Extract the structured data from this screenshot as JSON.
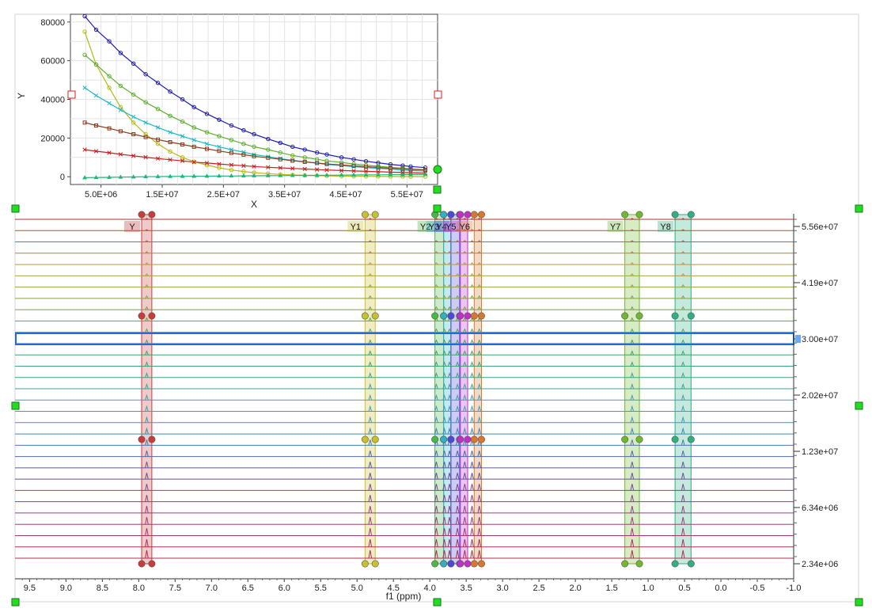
{
  "chart_data": [
    {
      "type": "scatter",
      "title": "",
      "xlabel": "X",
      "ylabel": "Y",
      "xlim": [
        0,
        60000000
      ],
      "ylim": [
        -4000,
        84000
      ],
      "x_ticks": [
        5000000,
        15000000,
        25000000,
        35000000,
        45000000,
        55000000
      ],
      "x_tick_labels": [
        "5.0E+06",
        "1.5E+07",
        "2.5E+07",
        "3.5E+07",
        "4.5E+07",
        "5.5E+07"
      ],
      "y_ticks": [
        0,
        20000,
        40000,
        60000,
        80000
      ],
      "y_tick_labels": [
        "0",
        "20000",
        "40000",
        "60000",
        "80000"
      ],
      "grid": true,
      "x": [
        2340000,
        4200000,
        6340000,
        8200000,
        10300000,
        12300000,
        14300000,
        16300000,
        18300000,
        20200000,
        22300000,
        24300000,
        26300000,
        28300000,
        30000000,
        32300000,
        34300000,
        36300000,
        38300000,
        40300000,
        41900000,
        44300000,
        46300000,
        48300000,
        50300000,
        52300000,
        54300000,
        55600000,
        58000000
      ],
      "series": [
        {
          "color": "#1f1fb0",
          "marker": "circle",
          "values": [
            83000,
            76000,
            70000,
            64000,
            58500,
            53000,
            48500,
            44000,
            40000,
            36000,
            32500,
            29500,
            26500,
            24000,
            22000,
            19500,
            17500,
            15500,
            14000,
            12500,
            11500,
            10000,
            9000,
            8000,
            7200,
            6400,
            5800,
            5300,
            4700
          ]
        },
        {
          "color": "#b8b81c",
          "marker": "circle",
          "values": [
            75000,
            58000,
            46000,
            36000,
            28000,
            22000,
            17000,
            13000,
            10000,
            7800,
            6000,
            4600,
            3500,
            2700,
            2100,
            1600,
            1200,
            950,
            700,
            550,
            450,
            350,
            250,
            200,
            150,
            120,
            100,
            80,
            60
          ]
        },
        {
          "color": "#5fb030",
          "marker": "circle",
          "values": [
            63000,
            58000,
            52000,
            47000,
            42500,
            38500,
            35000,
            31500,
            28500,
            25500,
            23000,
            21000,
            19000,
            17000,
            15500,
            14000,
            12500,
            11000,
            10000,
            9000,
            8200,
            7400,
            6600,
            6000,
            5400,
            4900,
            4400,
            4000,
            3600
          ]
        },
        {
          "color": "#1cb8c8",
          "marker": "x",
          "values": [
            46000,
            42000,
            38000,
            34500,
            31000,
            28000,
            25500,
            23000,
            21000,
            19000,
            17000,
            15500,
            14000,
            12700,
            11500,
            10400,
            9400,
            8500,
            7700,
            7000,
            6400,
            5800,
            5200,
            4700,
            4300,
            3900,
            3500,
            3200,
            2900
          ]
        },
        {
          "color": "#8b3c1c",
          "marker": "square",
          "values": [
            28000,
            26500,
            25000,
            23500,
            22000,
            20500,
            19200,
            17900,
            16700,
            15500,
            14400,
            13300,
            12300,
            11400,
            10600,
            9800,
            9000,
            8300,
            7700,
            7100,
            6600,
            6100,
            5600,
            5200,
            4800,
            4400,
            4100,
            3800,
            3500
          ]
        },
        {
          "color": "#c81c1c",
          "marker": "x",
          "values": [
            14000,
            13200,
            12400,
            11600,
            10800,
            10100,
            9400,
            8800,
            8200,
            7600,
            7100,
            6600,
            6100,
            5700,
            5300,
            4900,
            4600,
            4300,
            4000,
            3700,
            3500,
            3200,
            3000,
            2800,
            2600,
            2400,
            2200,
            2100,
            1900
          ]
        },
        {
          "color": "#1cb878",
          "marker": "triangle",
          "values": [
            -500,
            -400,
            -300,
            -200,
            -100,
            0,
            100,
            150,
            200,
            250,
            300,
            350,
            400,
            450,
            500,
            550,
            600,
            650,
            700,
            750,
            800,
            850,
            900,
            950,
            1000,
            1050,
            1100,
            1150,
            1200
          ]
        }
      ]
    },
    {
      "type": "stacked-spectra",
      "xlabel": "f1 (ppm)",
      "xlim": [
        9.7,
        -1.0
      ],
      "x_ticks": [
        9.5,
        9.0,
        8.5,
        8.0,
        7.5,
        7.0,
        6.5,
        6.0,
        5.5,
        5.0,
        4.5,
        4.0,
        3.5,
        3.0,
        2.5,
        2.0,
        1.5,
        1.0,
        0.5,
        0.0,
        -0.5,
        -1.0
      ],
      "x_tick_labels": [
        "9.5",
        "9.0",
        "8.5",
        "8.0",
        "7.5",
        "7.0",
        "6.5",
        "6.0",
        "5.5",
        "5.0",
        "4.5",
        "4.0",
        "3.5",
        "3.0",
        "2.5",
        "2.0",
        "1.5",
        "1.0",
        "0.5",
        "0.0",
        "-0.5",
        "-1.0"
      ],
      "right_axis_tick_labels": [
        "5.56e+07",
        "4.19e+07",
        "3.00e+07",
        "2.02e+07",
        "1.23e+07",
        "6.34e+06",
        "2.34e+06"
      ],
      "selected_label": "3.00e+07",
      "trace_count": 31,
      "trace_colors": [
        "#b03030",
        "#b05030",
        "#b06838",
        "#b88040",
        "#b89848",
        "#a8a048",
        "#98a040",
        "#88a040",
        "#78a040",
        "#68a048",
        "#58a050",
        "#48a058",
        "#40a068",
        "#40a078",
        "#40a088",
        "#40a098",
        "#40a0a8",
        "#40a0b0",
        "#4098b8",
        "#4088b8",
        "#4878b0",
        "#5068a8",
        "#5a5aa0",
        "#685098",
        "#784890",
        "#884088",
        "#904080",
        "#984078",
        "#a03870",
        "#a83060",
        "#b03050"
      ],
      "regions": [
        {
          "label": "Y",
          "center": 7.89,
          "width": 0.14,
          "color": "#c83c3c"
        },
        {
          "label": "Y1",
          "center": 4.82,
          "width": 0.14,
          "color": "#c8c030"
        },
        {
          "label": "Y2",
          "center": 3.87,
          "width": 0.12,
          "color": "#48b848"
        },
        {
          "label": "Y3",
          "center": 3.76,
          "width": 0.1,
          "color": "#30b0c0"
        },
        {
          "label": "Y4",
          "center": 3.65,
          "width": 0.12,
          "color": "#4a4ad8"
        },
        {
          "label": "Y5",
          "center": 3.53,
          "width": 0.1,
          "color": "#c030c8"
        },
        {
          "label": "Y6",
          "center": 3.34,
          "width": 0.1,
          "color": "#d87830"
        },
        {
          "label": "Y7",
          "center": 1.22,
          "width": 0.2,
          "color": "#70b830"
        },
        {
          "label": "Y8",
          "center": 0.52,
          "width": 0.22,
          "color": "#30b080"
        }
      ],
      "peaks": [
        7.89,
        4.82,
        3.91,
        3.8,
        3.73,
        3.62,
        3.52,
        3.42,
        3.32,
        1.22,
        0.52
      ],
      "handle_color": "#22dd22"
    }
  ]
}
